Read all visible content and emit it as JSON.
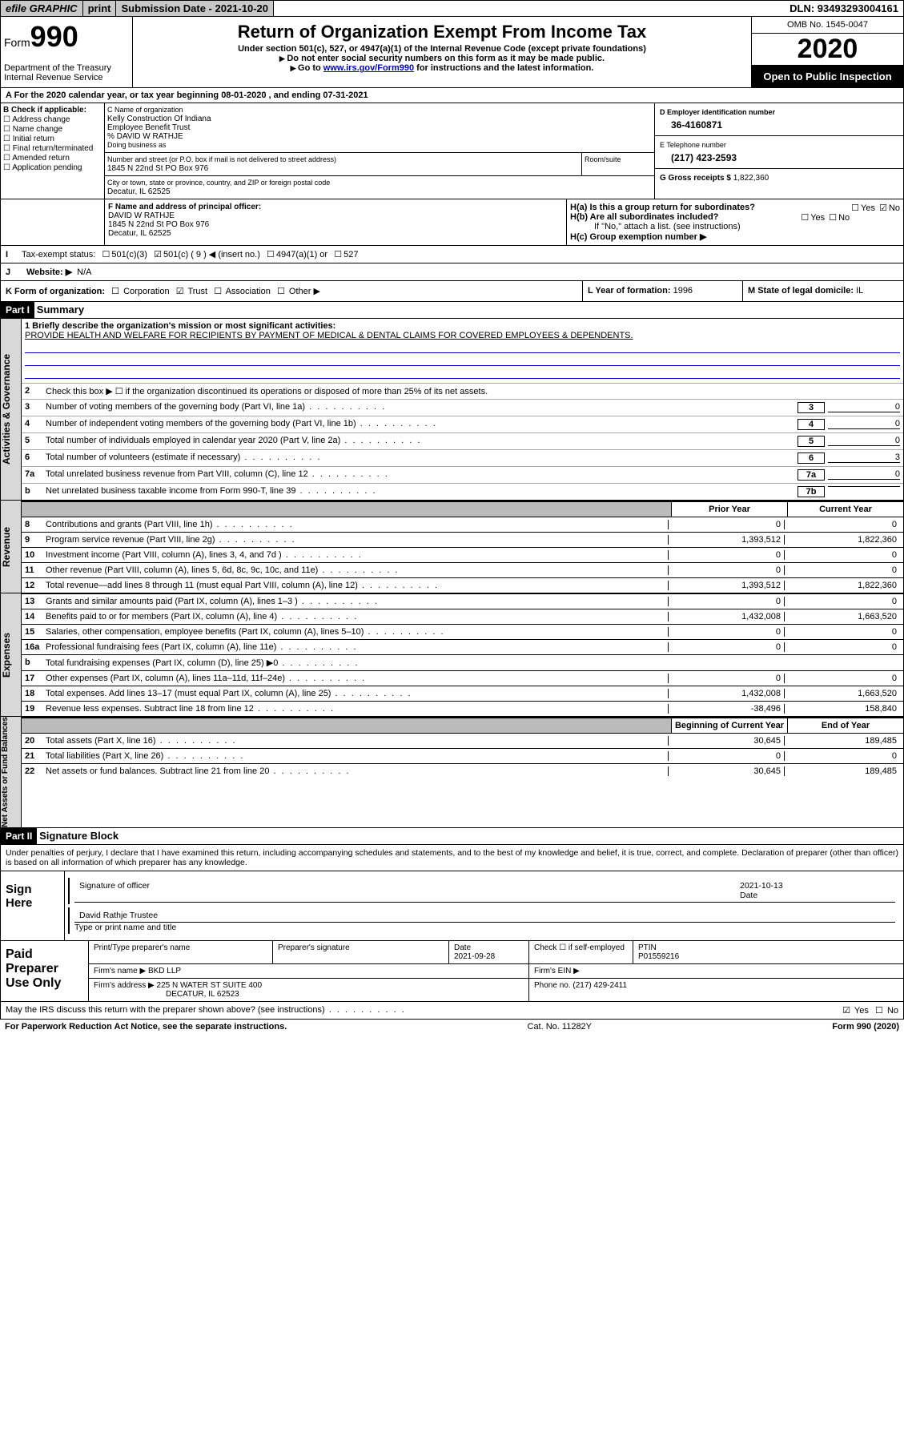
{
  "topbar": {
    "efile": "efile GRAPHIC",
    "print": "print",
    "subdate_label": "Submission Date - 2021-10-20",
    "dln": "DLN: 93493293004161"
  },
  "header": {
    "form_prefix": "Form",
    "form_number": "990",
    "dept": "Department of the Treasury\nInternal Revenue Service",
    "title": "Return of Organization Exempt From Income Tax",
    "sub1": "Under section 501(c), 527, or 4947(a)(1) of the Internal Revenue Code (except private foundations)",
    "sub2": "Do not enter social security numbers on this form as it may be made public.",
    "sub3_a": "Go to ",
    "sub3_link": "www.irs.gov/Form990",
    "sub3_b": " for instructions and the latest information.",
    "omb": "OMB No. 1545-0047",
    "year": "2020",
    "openpub": "Open to Public Inspection"
  },
  "rowA": "A For the 2020 calendar year, or tax year beginning 08-01-2020   , and ending 07-31-2021",
  "boxB": {
    "label": "B Check if applicable:",
    "items": [
      "Address change",
      "Name change",
      "Initial return",
      "Final return/terminated",
      "Amended return",
      "Application pending"
    ]
  },
  "boxC": {
    "name_lbl": "C Name of organization",
    "name1": "Kelly Construction Of Indiana",
    "name2": "Employee Benefit Trust",
    "care": "% DAVID W RATHJE",
    "dba_lbl": "Doing business as",
    "street_lbl": "Number and street (or P.O. box if mail is not delivered to street address)",
    "street": "1845 N 22nd St PO Box 976",
    "room_lbl": "Room/suite",
    "city_lbl": "City or town, state or province, country, and ZIP or foreign postal code",
    "city": "Decatur, IL  62525"
  },
  "boxD": {
    "lbl": "D Employer identification number",
    "val": "36-4160871"
  },
  "boxE": {
    "lbl": "E Telephone number",
    "val": "(217) 423-2593"
  },
  "boxG": {
    "lbl": "G Gross receipts $",
    "val": "1,822,360"
  },
  "boxF": {
    "lbl": "F  Name and address of principal officer:",
    "name": "DAVID W RATHJE",
    "addr1": "1845 N 22nd St PO Box 976",
    "addr2": "Decatur, IL  62525"
  },
  "boxH": {
    "a_label": "H(a)  Is this a group return for subordinates?",
    "b_label": "H(b)  Are all subordinates included?",
    "note": "If \"No,\" attach a list. (see instructions)",
    "c_label": "H(c)  Group exemption number ▶",
    "yes": "Yes",
    "no": "No"
  },
  "rowI": {
    "lbl": "Tax-exempt status:",
    "opts": [
      "501(c)(3)",
      "501(c) ( 9 ) ◀ (insert no.)",
      "4947(a)(1) or",
      "527"
    ]
  },
  "rowJ": {
    "lbl": "Website: ▶",
    "val": "N/A"
  },
  "rowK": "K Form of organization:",
  "rowK_opts": [
    "Corporation",
    "Trust",
    "Association",
    "Other ▶"
  ],
  "rowL": {
    "lbl": "L Year of formation:",
    "val": "1996"
  },
  "rowM": {
    "lbl": "M State of legal domicile:",
    "val": "IL"
  },
  "part1": {
    "tag": "Part I",
    "title": "Summary"
  },
  "section_labels": {
    "gov": "Activities & Governance",
    "rev": "Revenue",
    "exp": "Expenses",
    "net": "Net Assets or Fund Balances"
  },
  "lines_gov": {
    "l1_lbl": "1  Briefly describe the organization's mission or most significant activities:",
    "l1_val": "PROVIDE HEALTH AND WELFARE FOR RECIPIENTS BY PAYMENT OF MEDICAL & DENTAL CLAIMS FOR COVERED EMPLOYEES & DEPENDENTS.",
    "l2": "Check this box ▶ ☐  if the organization discontinued its operations or disposed of more than 25% of its net assets.",
    "l3": "Number of voting members of the governing body (Part VI, line 1a)",
    "l4": "Number of independent voting members of the governing body (Part VI, line 1b)",
    "l5": "Total number of individuals employed in calendar year 2020 (Part V, line 2a)",
    "l6": "Total number of volunteers (estimate if necessary)",
    "l7a": "Total unrelated business revenue from Part VIII, column (C), line 12",
    "l7b": "Net unrelated business taxable income from Form 990-T, line 39",
    "v3": "0",
    "v4": "0",
    "v5": "0",
    "v6": "3",
    "v7a": "0",
    "v7b": ""
  },
  "col_hdrs": {
    "prior": "Prior Year",
    "current": "Current Year",
    "beg": "Beginning of Current Year",
    "end": "End of Year"
  },
  "lines_rev": [
    {
      "n": "8",
      "t": "Contributions and grants (Part VIII, line 1h)",
      "p": "0",
      "c": "0"
    },
    {
      "n": "9",
      "t": "Program service revenue (Part VIII, line 2g)",
      "p": "1,393,512",
      "c": "1,822,360"
    },
    {
      "n": "10",
      "t": "Investment income (Part VIII, column (A), lines 3, 4, and 7d )",
      "p": "0",
      "c": "0"
    },
    {
      "n": "11",
      "t": "Other revenue (Part VIII, column (A), lines 5, 6d, 8c, 9c, 10c, and 11e)",
      "p": "0",
      "c": "0"
    },
    {
      "n": "12",
      "t": "Total revenue—add lines 8 through 11 (must equal Part VIII, column (A), line 12)",
      "p": "1,393,512",
      "c": "1,822,360"
    }
  ],
  "lines_exp": [
    {
      "n": "13",
      "t": "Grants and similar amounts paid (Part IX, column (A), lines 1–3 )",
      "p": "0",
      "c": "0"
    },
    {
      "n": "14",
      "t": "Benefits paid to or for members (Part IX, column (A), line 4)",
      "p": "1,432,008",
      "c": "1,663,520"
    },
    {
      "n": "15",
      "t": "Salaries, other compensation, employee benefits (Part IX, column (A), lines 5–10)",
      "p": "0",
      "c": "0"
    },
    {
      "n": "16a",
      "t": "Professional fundraising fees (Part IX, column (A), line 11e)",
      "p": "0",
      "c": "0"
    },
    {
      "n": "b",
      "t": "Total fundraising expenses (Part IX, column (D), line 25) ▶0",
      "p": "",
      "c": ""
    },
    {
      "n": "17",
      "t": "Other expenses (Part IX, column (A), lines 11a–11d, 11f–24e)",
      "p": "0",
      "c": "0"
    },
    {
      "n": "18",
      "t": "Total expenses. Add lines 13–17 (must equal Part IX, column (A), line 25)",
      "p": "1,432,008",
      "c": "1,663,520"
    },
    {
      "n": "19",
      "t": "Revenue less expenses. Subtract line 18 from line 12",
      "p": "-38,496",
      "c": "158,840"
    }
  ],
  "lines_net": [
    {
      "n": "20",
      "t": "Total assets (Part X, line 16)",
      "p": "30,645",
      "c": "189,485"
    },
    {
      "n": "21",
      "t": "Total liabilities (Part X, line 26)",
      "p": "0",
      "c": "0"
    },
    {
      "n": "22",
      "t": "Net assets or fund balances. Subtract line 21 from line 20",
      "p": "30,645",
      "c": "189,485"
    }
  ],
  "part2": {
    "tag": "Part II",
    "title": "Signature Block"
  },
  "penalty": "Under penalties of perjury, I declare that I have examined this return, including accompanying schedules and statements, and to the best of my knowledge and belief, it is true, correct, and complete. Declaration of preparer (other than officer) is based on all information of which preparer has any knowledge.",
  "sign": {
    "here": "Sign Here",
    "sig_of_officer": "Signature of officer",
    "date_lbl": "Date",
    "date": "2021-10-13",
    "name": "David Rathje  Trustee",
    "type_lbl": "Type or print name and title"
  },
  "prep": {
    "left": "Paid Preparer Use Only",
    "h_print": "Print/Type preparer's name",
    "h_sig": "Preparer's signature",
    "h_date": "Date",
    "date": "2021-09-28",
    "h_check": "Check ☐ if self-employed",
    "h_ptin": "PTIN",
    "ptin": "P01559216",
    "firm_name_lbl": "Firm's name    ▶",
    "firm_name": "BKD LLP",
    "firm_ein_lbl": "Firm's EIN ▶",
    "firm_addr_lbl": "Firm's address ▶",
    "firm_addr1": "225 N WATER ST SUITE 400",
    "firm_addr2": "DECATUR, IL  62523",
    "phone_lbl": "Phone no.",
    "phone": "(217) 429-2411"
  },
  "discuss": {
    "txt": "May the IRS discuss this return with the preparer shown above? (see instructions)",
    "yes": "Yes",
    "no": "No"
  },
  "foot": {
    "left": "For Paperwork Reduction Act Notice, see the separate instructions.",
    "mid": "Cat. No. 11282Y",
    "right": "Form 990 (2020)"
  }
}
